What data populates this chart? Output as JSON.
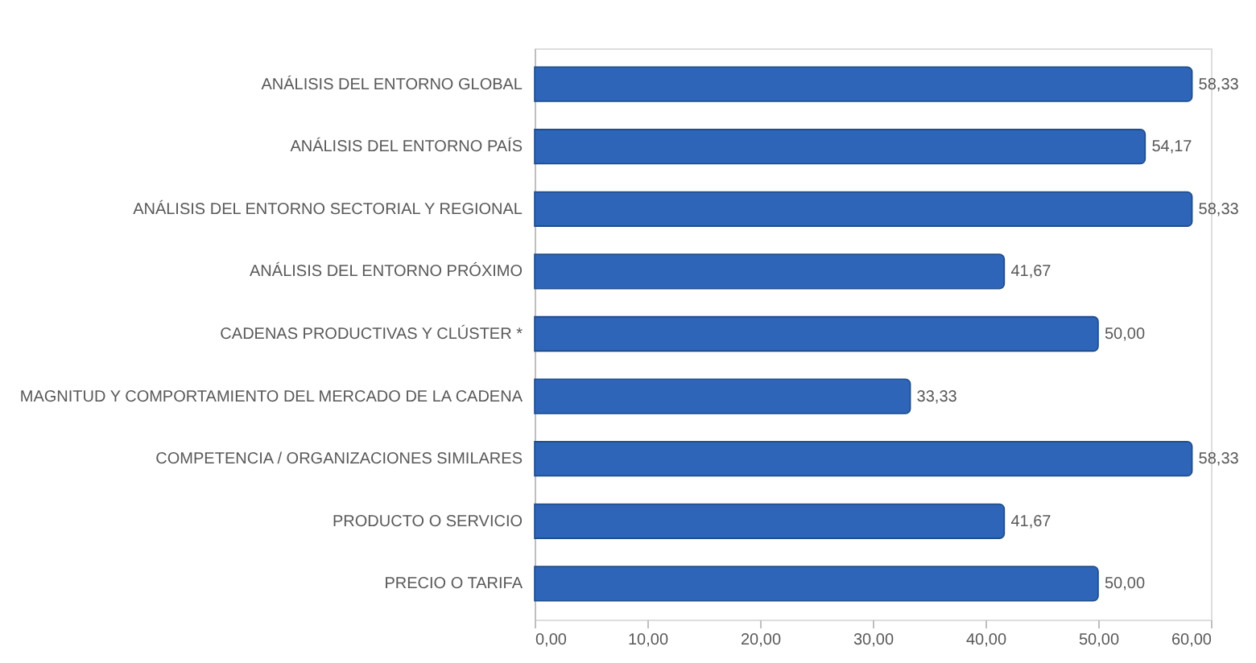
{
  "chart_data": {
    "type": "bar",
    "orientation": "horizontal",
    "categories": [
      "ANÁLISIS DEL ENTORNO GLOBAL",
      "ANÁLISIS DEL ENTORNO PAÍS",
      "ANÁLISIS DEL ENTORNO SECTORIAL Y REGIONAL",
      "ANÁLISIS DEL ENTORNO PRÓXIMO",
      "CADENAS PRODUCTIVAS Y CLÚSTER  *",
      "MAGNITUD Y COMPORTAMIENTO DEL MERCADO DE LA CADENA",
      "COMPETENCIA / ORGANIZACIONES SIMILARES",
      "PRODUCTO O SERVICIO",
      "PRECIO O TARIFA"
    ],
    "values": [
      58.33,
      54.17,
      58.33,
      41.67,
      50.0,
      33.33,
      58.33,
      41.67,
      50.0
    ],
    "value_labels": [
      "58,33",
      "54,17",
      "58,33",
      "41,67",
      "50,00",
      "33,33",
      "58,33",
      "41,67",
      "50,00"
    ],
    "color": "#2f65b8",
    "xlim": [
      0,
      60
    ],
    "xticks": [
      {
        "value": 0,
        "label": "0,00"
      },
      {
        "value": 10,
        "label": "10,00"
      },
      {
        "value": 20,
        "label": "20,00"
      },
      {
        "value": 30,
        "label": "30,00"
      },
      {
        "value": 40,
        "label": "40,00"
      },
      {
        "value": 50,
        "label": "50,00"
      },
      {
        "value": 60,
        "label": "60,00"
      }
    ],
    "grid": false
  }
}
